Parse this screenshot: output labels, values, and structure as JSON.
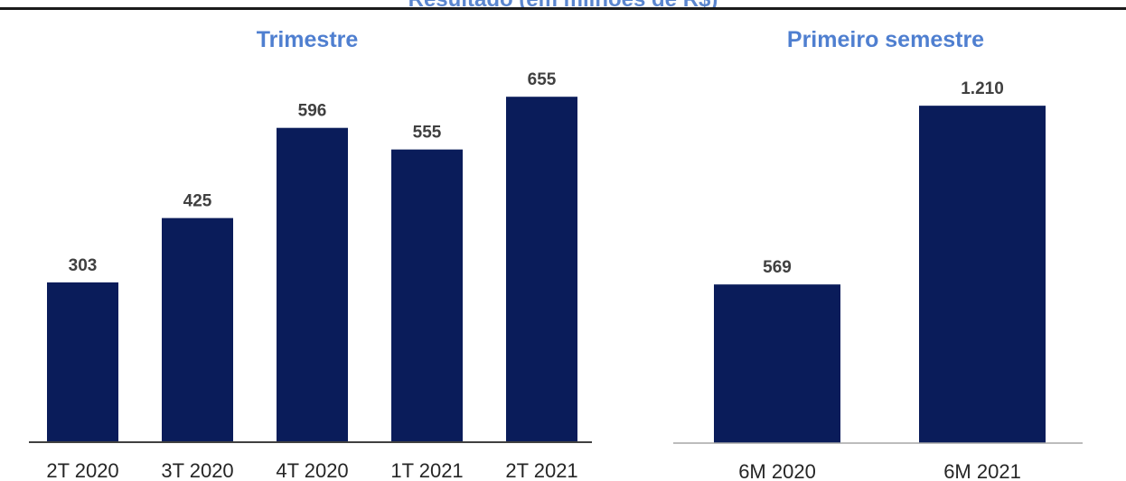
{
  "header": {
    "text": "Resultado (em milhões de R$)"
  },
  "chart_data": [
    {
      "type": "bar",
      "title": "Trimestre",
      "categories": [
        "2T 2020",
        "3T 2020",
        "4T 2020",
        "1T 2021",
        "2T 2021"
      ],
      "values": [
        303,
        425,
        596,
        555,
        655
      ],
      "value_labels": [
        "303",
        "425",
        "596",
        "555",
        "655"
      ],
      "ylim": [
        0,
        770
      ],
      "grid": false,
      "colors": {
        "bar": "#0a1c5a"
      }
    },
    {
      "type": "bar",
      "title": "Primeiro semestre",
      "categories": [
        "6M 2020",
        "6M 2021"
      ],
      "values": [
        569,
        1210
      ],
      "value_labels": [
        "569",
        "1.210"
      ],
      "ylim": [
        0,
        1560
      ],
      "grid": false,
      "colors": {
        "bar": "#0a1c5a"
      }
    }
  ]
}
